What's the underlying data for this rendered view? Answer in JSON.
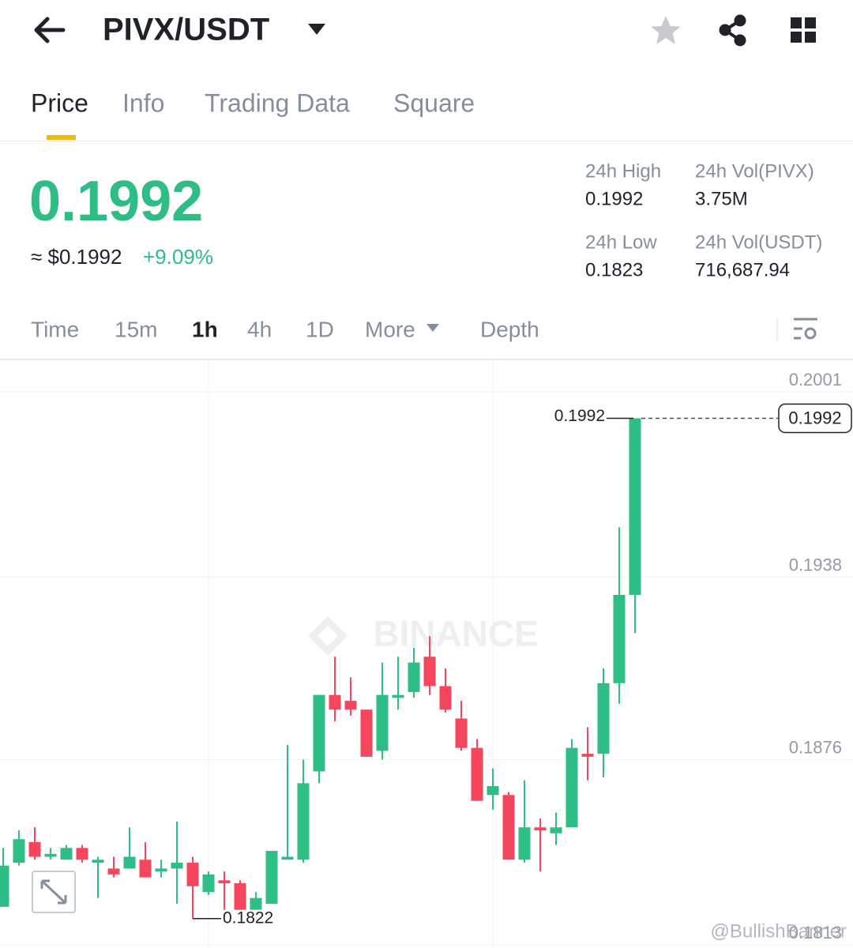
{
  "header": {
    "pair": "PIVX/USDT"
  },
  "tabs": [
    "Price",
    "Info",
    "Trading Data",
    "Square"
  ],
  "ticker": {
    "price": "0.1992",
    "approx": "≈ $0.1992",
    "change": "+9.09%",
    "stats": [
      {
        "label": "24h High",
        "value": "0.1992"
      },
      {
        "label": "24h Vol(PIVX)",
        "value": "3.75M"
      },
      {
        "label": "24h Low",
        "value": "0.1823"
      },
      {
        "label": "24h Vol(USDT)",
        "value": "716,687.94"
      }
    ]
  },
  "intervals": [
    "Time",
    "15m",
    "1h",
    "4h",
    "1D",
    "More",
    "Depth"
  ],
  "watermark": "BINANCE",
  "credit": "@BullishBanner",
  "chart_data": {
    "type": "candlestick",
    "open": [
      0.1826,
      0.1841,
      0.1848,
      0.1843,
      0.1842,
      0.1846,
      0.1841,
      0.1839,
      0.1839,
      0.1842,
      0.1838,
      0.1839,
      0.1841,
      0.1831,
      0.1835,
      0.1834,
      0.1825,
      0.1827,
      0.1842,
      0.1842,
      0.1872,
      0.1898,
      0.1896,
      0.1893,
      0.1879,
      0.1897,
      0.1899,
      0.1911,
      0.1901,
      0.189,
      0.188,
      0.1864,
      0.1864,
      0.1842,
      0.1853,
      0.1851,
      0.1853,
      0.1878,
      0.1878,
      0.1902,
      0.1932
    ],
    "high": [
      0.1846,
      0.1852,
      0.1853,
      0.1846,
      0.1847,
      0.1847,
      0.1843,
      0.1843,
      0.1853,
      0.1848,
      0.1842,
      0.1855,
      0.1843,
      0.1838,
      0.1838,
      0.1835,
      0.1831,
      0.1845,
      0.1881,
      0.1876,
      0.1898,
      0.1911,
      0.1904,
      0.1893,
      0.1909,
      0.1911,
      0.1914,
      0.1918,
      0.1907,
      0.1896,
      0.1883,
      0.1873,
      0.1865,
      0.1869,
      0.1856,
      0.1858,
      0.1883,
      0.1887,
      0.1907,
      0.1955,
      0.1992
    ],
    "low": [
      0.1826,
      0.184,
      0.1842,
      0.1842,
      0.1842,
      0.1841,
      0.1829,
      0.1836,
      0.1839,
      0.1836,
      0.1836,
      0.1827,
      0.1822,
      0.183,
      0.1825,
      0.1825,
      0.1825,
      0.1827,
      0.1842,
      0.1841,
      0.1868,
      0.1889,
      0.1891,
      0.1877,
      0.1876,
      0.1893,
      0.1897,
      0.1898,
      0.1892,
      0.1879,
      0.1862,
      0.1859,
      0.1842,
      0.1841,
      0.1838,
      0.1847,
      0.1853,
      0.1869,
      0.187,
      0.1895,
      0.1919
    ],
    "close": [
      0.184,
      0.1849,
      0.1843,
      0.1844,
      0.1846,
      0.1842,
      0.1842,
      0.1837,
      0.1843,
      0.1836,
      0.1839,
      0.1841,
      0.1833,
      0.1837,
      0.1834,
      0.1825,
      0.1829,
      0.1845,
      0.1843,
      0.1868,
      0.1898,
      0.1893,
      0.1893,
      0.1877,
      0.1898,
      0.1898,
      0.1909,
      0.1901,
      0.1893,
      0.188,
      0.1862,
      0.1867,
      0.1842,
      0.1853,
      0.1852,
      0.1853,
      0.188,
      0.1877,
      0.1902,
      0.1932,
      0.1992
    ],
    "up_color": "#2ebd85",
    "down_color": "#f6465d",
    "ylim": [
      0.1812,
      0.2012
    ],
    "yticks": [
      0.2001,
      0.1938,
      0.1876,
      0.1813
    ],
    "grid": true,
    "annotations": {
      "max": 0.1992,
      "min": 0.1822,
      "last": 0.1992
    }
  }
}
